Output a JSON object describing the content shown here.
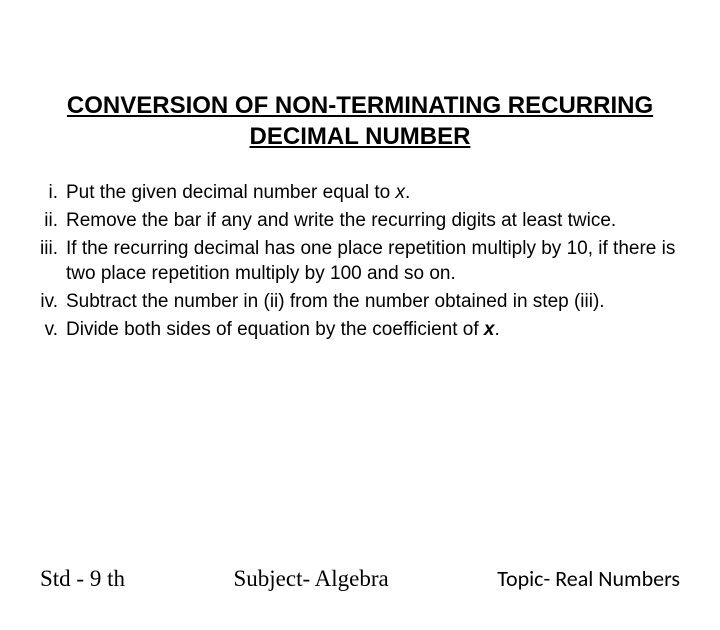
{
  "title_line1": "CONVERSION OF NON-TERMINATING RECURRING",
  "title_line2": "DECIMAL NUMBER",
  "steps": [
    {
      "marker": "i.",
      "text_before": "Put the given decimal number equal to ",
      "x": "x",
      "text_after": "."
    },
    {
      "marker": "ii.",
      "text_before": "Remove the bar if any and write the recurring digits at least twice.",
      "x": "",
      "text_after": ""
    },
    {
      "marker": "iii.",
      "text_before": "If the recurring decimal has one place repetition multiply by 10, if there is two place repetition multiply by 100 and so on.",
      "x": "",
      "text_after": ""
    },
    {
      "marker": "iv.",
      "text_before": "Subtract the number in (ii) from the number obtained in step (iii).",
      "x": "",
      "text_after": ""
    },
    {
      "marker": "v.",
      "text_before": "Divide both sides of equation by the coefficient of ",
      "x_bold": "x",
      "text_after": "."
    }
  ],
  "footer": {
    "left": "Std - 9 th",
    "center": "Subject- Algebra",
    "right": "Topic- Real Numbers"
  },
  "colors": {
    "background": "#ffffff",
    "text": "#000000"
  },
  "typography": {
    "title_fontsize": 24,
    "body_fontsize": 19,
    "footer_fontsize": 23,
    "title_weight": "bold"
  }
}
